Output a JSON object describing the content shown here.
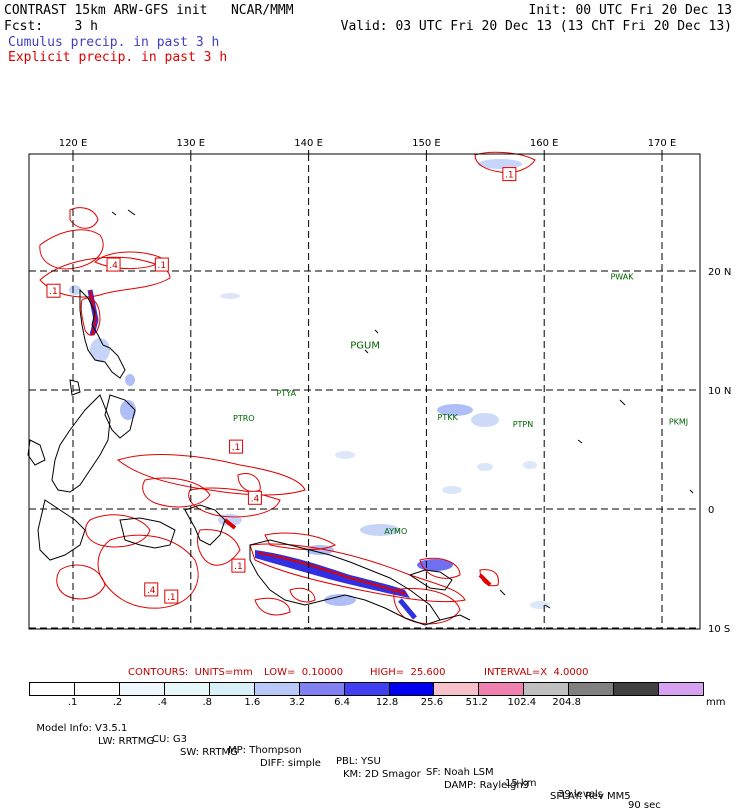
{
  "header": {
    "line1_left": "CONTRAST 15km ARW-GFS init   NCAR/MMM",
    "line1_right": "Init: 00 UTC Fri 20 Dec 13",
    "line2_left": "Fcst:    3 h",
    "line2_right": "Valid: 03 UTC Fri 20 Dec 13 (13 ChT Fri 20 Dec 13)",
    "legend_cumulus": "Cumulus precip. in past 3 h",
    "legend_explicit": "Explicit precip. in past 3 h",
    "cumulus_color": "#4040c0",
    "explicit_color": "#e00000"
  },
  "map": {
    "lon_labels": [
      "120 E",
      "130 E",
      "140 E",
      "150 E",
      "160 E",
      "170 E"
    ],
    "lat_labels": [
      "20 N",
      "10 N",
      "0",
      "10 S"
    ],
    "stations": [
      {
        "id": "PWAK",
        "lon": 166.6,
        "lat": 19.3
      },
      {
        "id": "PGUM",
        "lon": 144.8,
        "lat": 13.5
      },
      {
        "id": "PTYA",
        "lon": 138.1,
        "lat": 9.5
      },
      {
        "id": "PTRO",
        "lon": 134.5,
        "lat": 7.4
      },
      {
        "id": "PTKK",
        "lon": 151.8,
        "lat": 7.5
      },
      {
        "id": "PTPN",
        "lon": 158.2,
        "lat": 6.9
      },
      {
        "id": "PKMJ",
        "lon": 171.4,
        "lat": 7.1
      },
      {
        "id": "AYMO",
        "lon": 147.4,
        "lat": -2.1
      }
    ],
    "contour_labels": [
      {
        "text": ".1",
        "lon": 157.0,
        "lat": 28.1
      },
      {
        "text": ".4",
        "lon": 123.4,
        "lat": 20.5
      },
      {
        "text": ".1",
        "lon": 127.5,
        "lat": 20.5
      },
      {
        "text": ".1",
        "lon": 118.3,
        "lat": 18.3
      },
      {
        "text": ".1",
        "lon": 133.8,
        "lat": 5.2
      },
      {
        "text": ".4",
        "lon": 135.4,
        "lat": 0.9
      },
      {
        "text": ".1",
        "lon": 134.0,
        "lat": -4.8
      },
      {
        "text": ".4",
        "lon": 126.6,
        "lat": -6.8
      },
      {
        "text": ".1",
        "lon": 128.3,
        "lat": -7.4
      }
    ]
  },
  "contour_info": {
    "contours": "CONTOURS:  UNITS=mm",
    "low": "LOW=  0.10000",
    "high": "HIGH=  25.600",
    "interval": "INTERVAL=X  4.0000"
  },
  "colorbar": {
    "unit": "mm",
    "labels": [
      ".1",
      ".2",
      ".4",
      ".8",
      "1.6",
      "3.2",
      "6.4",
      "12.8",
      "25.6",
      "51.2",
      "102.4",
      "204.8"
    ],
    "colors": [
      "#ffffff",
      "#ffffff",
      "#f0f8ff",
      "#e6f8f8",
      "#d8f0f8",
      "#b8c8f8",
      "#8080f0",
      "#4040f0",
      "#0000f0",
      "#f8c0c8",
      "#f080b0",
      "#c0c0c0",
      "#808080",
      "#404040",
      "#d8a0f0"
    ]
  },
  "footer": {
    "line1": [
      "Model Info: V3.5.1",
      "CU: G3",
      "MP: Thompson",
      "PBL: YSU",
      "SF: Noah LSM",
      "15 km",
      "39 levels",
      "90 sec"
    ],
    "line2": [
      "LW: RRTMG",
      "SW: RRTMG",
      "DIFF: simple",
      "KM: 2D Smagor",
      "DAMP: Rayleigh3",
      "SFLAY: Rev MM5"
    ]
  }
}
